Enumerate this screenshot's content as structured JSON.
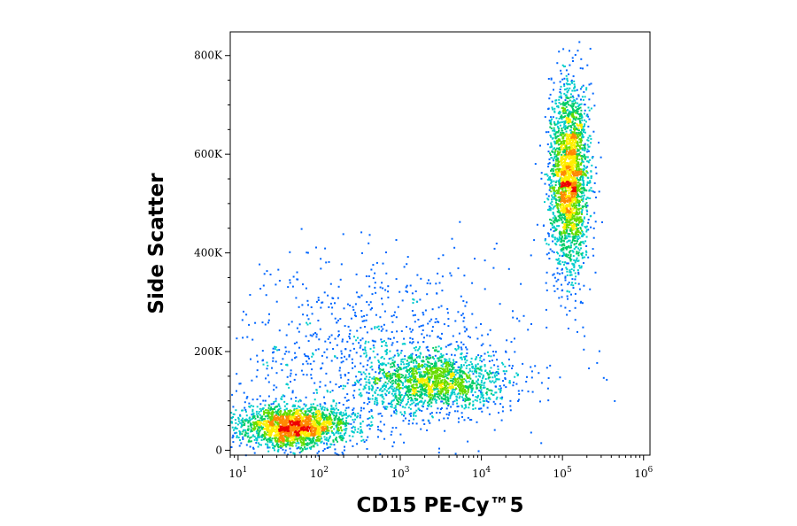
{
  "chart_data": {
    "type": "scatter",
    "subtype": "flow-cytometry-density-dot-plot",
    "xlabel": "CD15 PE-Cy™5",
    "ylabel": "Side Scatter",
    "x_scale": "log",
    "xlim": [
      8,
      1200000
    ],
    "x_ticks": [
      {
        "value": 10,
        "base": "10",
        "exp": "1"
      },
      {
        "value": 100,
        "base": "10",
        "exp": "2"
      },
      {
        "value": 1000,
        "base": "10",
        "exp": "3"
      },
      {
        "value": 10000,
        "base": "10",
        "exp": "4"
      },
      {
        "value": 100000,
        "base": "10",
        "exp": "5"
      },
      {
        "value": 1000000,
        "base": "10",
        "exp": "6"
      }
    ],
    "y_scale": "linear",
    "ylim": [
      -10000,
      848000
    ],
    "y_ticks": [
      {
        "value": 0,
        "label": "0"
      },
      {
        "value": 200000,
        "label": "200K"
      },
      {
        "value": 400000,
        "label": "400K"
      },
      {
        "value": 600000,
        "label": "600K"
      },
      {
        "value": 800000,
        "label": "800K"
      }
    ],
    "grid": false,
    "legend": "none",
    "density_colormap": [
      "#0000cc",
      "#0066ff",
      "#00cccc",
      "#00cc66",
      "#66dd00",
      "#ffee00",
      "#ff8800",
      "#ee0000"
    ],
    "populations": [
      {
        "center_x": 50,
        "center_y": 50000,
        "spread_log10_x": 0.35,
        "spread_y": 22000,
        "weight": 0.3
      },
      {
        "center_x": 2500,
        "center_y": 140000,
        "spread_log10_x": 0.45,
        "spread_y": 30000,
        "weight": 0.22
      },
      {
        "center_x": 120000,
        "center_y": 550000,
        "spread_log10_x": 0.12,
        "spread_y": 95000,
        "weight": 0.35
      },
      {
        "center_x": 500,
        "center_y": 200000,
        "spread_log10_x": 1.0,
        "spread_y": 90000,
        "weight": 0.13
      }
    ]
  }
}
